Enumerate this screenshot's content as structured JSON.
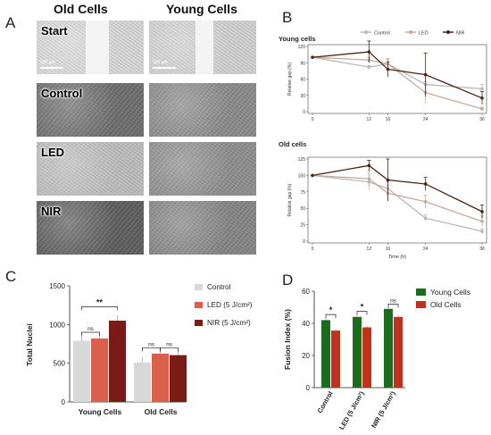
{
  "panels": {
    "A": "A",
    "B": "B",
    "C": "C",
    "D": "D"
  },
  "panel_a": {
    "columns": [
      "Old Cells",
      "Young Cells"
    ],
    "rows": [
      "Start",
      "Control",
      "LED",
      "NIR"
    ],
    "scale_text": "500 µm"
  },
  "chart_data": [
    {
      "id": "B-young",
      "type": "line",
      "title": "Young cells",
      "ylabel": "Relative gap (%)",
      "xlabel": "",
      "x_ticks": [
        0,
        12,
        16,
        24,
        36
      ],
      "ylim": [
        0,
        120
      ],
      "y_ticks": [
        0,
        30,
        60,
        90,
        120
      ],
      "legend": [
        "Control",
        "LED",
        "NIR"
      ],
      "legend_position": "top",
      "series": [
        {
          "name": "Control",
          "color": "#b8b8b8",
          "x": [
            0,
            12,
            16,
            24,
            36
          ],
          "y": [
            100,
            82,
            88,
            50,
            42
          ],
          "err": [
            0,
            3,
            8,
            18,
            8
          ]
        },
        {
          "name": "LED",
          "color": "#c9a99a",
          "x": [
            0,
            12,
            16,
            24,
            36
          ],
          "y": [
            100,
            95,
            88,
            35,
            5
          ],
          "err": [
            0,
            5,
            10,
            20,
            3
          ]
        },
        {
          "name": "NIR",
          "color": "#4a2412",
          "x": [
            0,
            12,
            16,
            24,
            36
          ],
          "y": [
            100,
            110,
            78,
            68,
            25
          ],
          "err": [
            0,
            20,
            14,
            40,
            12
          ]
        }
      ]
    },
    {
      "id": "B-old",
      "type": "line",
      "title": "Old cells",
      "ylabel": "Relative gap (%)",
      "xlabel": "Time (h)",
      "x_ticks": [
        0,
        12,
        16,
        24,
        36
      ],
      "ylim": [
        0,
        125
      ],
      "y_ticks": [
        0,
        25,
        50,
        75,
        100,
        125
      ],
      "series": [
        {
          "name": "Control",
          "color": "#b8b8b8",
          "x": [
            0,
            12,
            16,
            24,
            36
          ],
          "y": [
            100,
            90,
            80,
            35,
            15
          ],
          "err": [
            0,
            12,
            10,
            5,
            4
          ]
        },
        {
          "name": "LED",
          "color": "#c9a99a",
          "x": [
            0,
            12,
            16,
            24,
            36
          ],
          "y": [
            100,
            95,
            73,
            60,
            30
          ],
          "err": [
            0,
            12,
            12,
            10,
            8
          ]
        },
        {
          "name": "NIR",
          "color": "#4a2412",
          "x": [
            0,
            12,
            16,
            24,
            36
          ],
          "y": [
            100,
            115,
            93,
            87,
            45
          ],
          "err": [
            0,
            8,
            32,
            10,
            10
          ]
        }
      ]
    },
    {
      "id": "C",
      "type": "bar",
      "ylabel": "Total Nuclei",
      "categories": [
        "Young Cells",
        "Old Cells"
      ],
      "ylim": [
        0,
        1500
      ],
      "y_ticks": [
        0,
        500,
        1000,
        1500
      ],
      "legend": [
        "Control",
        "LED (5 J/cm²)",
        "NIR (5 J/cm²)"
      ],
      "legend_position": "right",
      "series": [
        {
          "name": "Control",
          "color": "#d8d8d8",
          "values": [
            790,
            510
          ]
        },
        {
          "name": "LED (5 J/cm²)",
          "color": "#d9604a",
          "values": [
            820,
            625
          ]
        },
        {
          "name": "NIR (5 J/cm²)",
          "color": "#7b1b17",
          "values": [
            1050,
            605
          ]
        }
      ],
      "annotations": [
        "ns",
        "**",
        "ns",
        "ns"
      ]
    },
    {
      "id": "D",
      "type": "bar",
      "ylabel": "Fusion Index (%)",
      "categories": [
        "Control",
        "LED (5 J/cm²)",
        "NIR (5 J/cm²)"
      ],
      "ylim": [
        0,
        60
      ],
      "y_ticks": [
        0,
        20,
        40,
        60
      ],
      "legend": [
        "Young Cells",
        "Old Cells"
      ],
      "legend_position": "top-right",
      "series": [
        {
          "name": "Young Cells",
          "color": "#1d6b1d",
          "values": [
            42,
            44,
            49
          ]
        },
        {
          "name": "Old Cells",
          "color": "#c1321d",
          "values": [
            35.5,
            37.5,
            44
          ]
        }
      ],
      "annotations": [
        "*",
        "*",
        "ns"
      ]
    }
  ]
}
